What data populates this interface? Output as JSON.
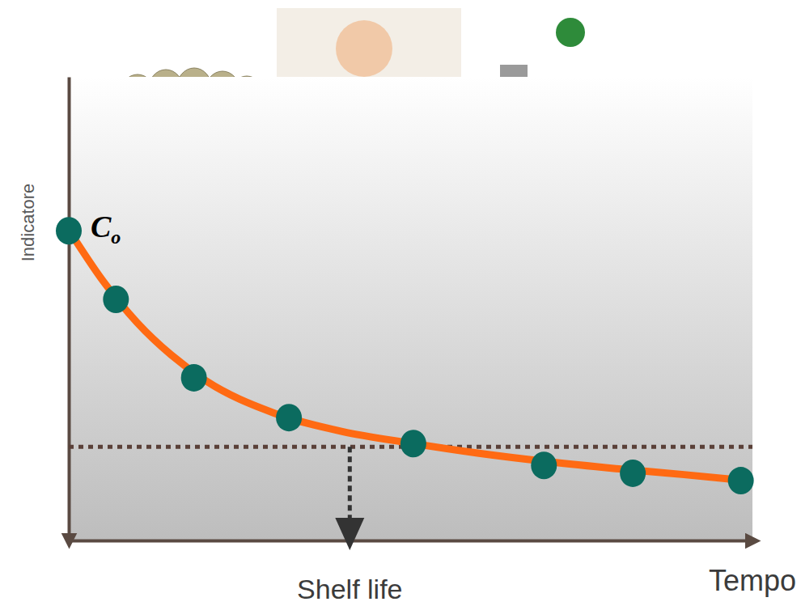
{
  "chart_data": {
    "type": "line",
    "x_label": "Tempo",
    "y_label": "Indicatore",
    "xlim": [
      0,
      10
    ],
    "ylim": [
      0,
      10
    ],
    "xticks": [],
    "yticks": [],
    "tick_labels": false,
    "grid": false,
    "series": [
      {
        "type": "line",
        "color": "#ff6a13",
        "line_style": "solid",
        "x": [
          0,
          0.5,
          1,
          1.5,
          2,
          3,
          4,
          5,
          6,
          7,
          8,
          9,
          9.83
        ],
        "values": [
          6.7,
          5.6,
          4.7,
          4.0,
          3.45,
          2.75,
          2.35,
          2.1,
          1.88,
          1.7,
          1.55,
          1.42,
          1.3
        ]
      },
      {
        "type": "scatter",
        "color": "#0b6b5f",
        "marker": "circle",
        "x": [
          0,
          0.69,
          1.83,
          3.22,
          5.04,
          6.95,
          8.25,
          9.83
        ],
        "values": [
          6.68,
          5.2,
          3.51,
          2.65,
          2.09,
          1.62,
          1.45,
          1.29
        ]
      }
    ],
    "threshold": 2.02,
    "annotations": [
      {
        "text": "Shelf life",
        "x": 4.11
      },
      {
        "text": "C",
        "subscript": "o",
        "x": 0,
        "y": 6.68
      }
    ]
  }
}
